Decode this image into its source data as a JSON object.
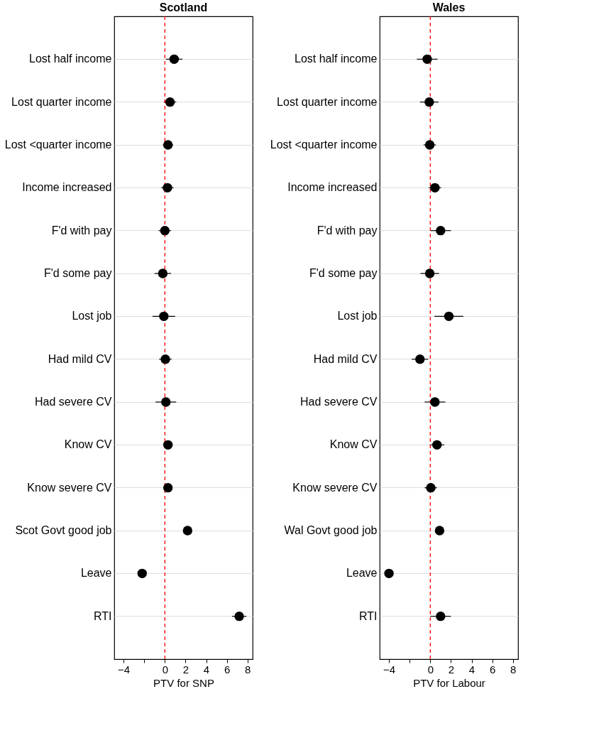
{
  "chart_data": [
    {
      "type": "scatter",
      "orientation": "horizontal",
      "title": "Scotland",
      "xlabel": "PTV for SNP",
      "categories": [
        "Lost half income",
        "Lost quarter income",
        "Lost <quarter income",
        "Income increased",
        "F'd with pay",
        "F'd some pay",
        "Lost job",
        "Had mild CV",
        "Had severe CV",
        "Know CV",
        "Know severe CV",
        "Scot Govt good job",
        "Leave",
        "RTI"
      ],
      "values": [
        0.9,
        0.5,
        0.3,
        0.25,
        0.0,
        -0.2,
        -0.1,
        0.05,
        0.1,
        0.3,
        0.3,
        2.2,
        -2.2,
        7.2
      ],
      "errors": [
        0.8,
        0.6,
        0.5,
        0.6,
        0.6,
        0.8,
        1.1,
        0.6,
        1.0,
        0.4,
        0.4,
        0.3,
        0.2,
        0.7
      ],
      "color": "#000000",
      "marker": "circle",
      "xlim": [
        -4.9,
        8.5
      ],
      "xticks": [
        {
          "value": -4,
          "label": "−4"
        },
        {
          "value": -2,
          "label": null
        },
        0,
        2,
        4,
        6,
        8
      ],
      "ref_lines": [
        {
          "axis": "x",
          "value": 0,
          "color": "#ff0000",
          "line_style": "dashed"
        }
      ],
      "grid": "y"
    },
    {
      "type": "scatter",
      "orientation": "horizontal",
      "title": "Wales",
      "xlabel": "PTV for Labour",
      "categories": [
        "Lost half income",
        "Lost quarter income",
        "Lost <quarter income",
        "Income increased",
        "F'd with pay",
        "F'd some pay",
        "Lost job",
        "Had mild CV",
        "Had severe CV",
        "Know CV",
        "Know severe CV",
        "Wal Govt good job",
        "Leave",
        "RTI"
      ],
      "values": [
        -0.3,
        -0.1,
        -0.05,
        0.45,
        1.0,
        -0.05,
        1.8,
        -1.0,
        0.45,
        0.65,
        0.05,
        0.9,
        -4.0,
        1.0
      ],
      "errors": [
        1.0,
        0.9,
        0.6,
        0.6,
        1.0,
        0.9,
        1.4,
        0.8,
        1.0,
        0.7,
        0.6,
        0.3,
        0.2,
        1.0
      ],
      "color": "#000000",
      "marker": "circle",
      "xlim": [
        -4.9,
        8.5
      ],
      "xticks": [
        {
          "value": -4,
          "label": "−4"
        },
        {
          "value": -2,
          "label": null
        },
        0,
        2,
        4,
        6,
        8
      ],
      "ref_lines": [
        {
          "axis": "x",
          "value": 0,
          "color": "#ff0000",
          "line_style": "dashed"
        }
      ],
      "grid": "y"
    }
  ]
}
